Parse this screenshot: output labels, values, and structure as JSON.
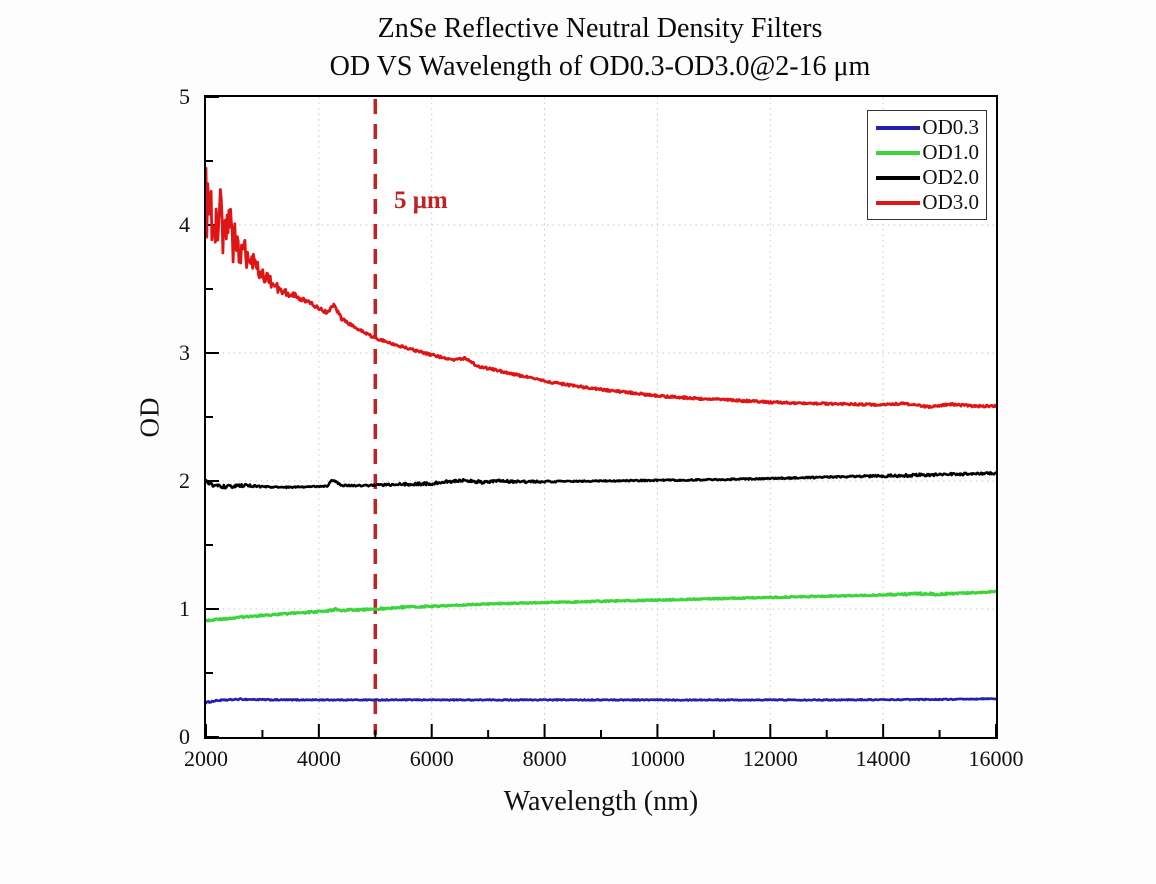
{
  "title_line1": "ZnSe Reflective Neutral Density Filters",
  "title_line2": "OD VS Wavelength of OD0.3-OD3.0@2-16 μm",
  "axes": {
    "x_label": "Wavelength (nm)",
    "y_label": "OD",
    "x_range": [
      2000,
      16000
    ],
    "y_range": [
      0,
      5
    ],
    "x_major_ticks": [
      2000,
      4000,
      6000,
      8000,
      10000,
      12000,
      14000,
      16000
    ],
    "x_minor_ticks": [
      3000,
      5000,
      7000,
      9000,
      11000,
      13000,
      15000
    ],
    "y_major_ticks": [
      0,
      1,
      2,
      3,
      4,
      5
    ],
    "y_minor_ticks": [
      0.5,
      1.5,
      2.5,
      3.5,
      4.5
    ],
    "grid_color": "#c7c7c7",
    "frame_color": "#000000"
  },
  "annotation": {
    "label": "5 μm",
    "x_nm": 5000,
    "color": "#bf2323"
  },
  "legend": {
    "position": "top-right",
    "entries": [
      "OD0.3",
      "OD1.0",
      "OD2.0",
      "OD3.0"
    ]
  },
  "chart_data": {
    "type": "line",
    "title": "ZnSe Reflective Neutral Density Filters — OD VS Wavelength of OD0.3-OD3.0@2-16 μm",
    "xlabel": "Wavelength (nm)",
    "ylabel": "OD",
    "xlim": [
      2000,
      16000
    ],
    "ylim": [
      0,
      5
    ],
    "grid": true,
    "legend_position": "top-right",
    "vline": {
      "x": 5000,
      "label": "5 μm",
      "style": "dashed",
      "color": "#bf2323"
    },
    "series": [
      {
        "name": "OD0.3",
        "color": "#2121ad",
        "stroke_width": 2.6,
        "points": [
          [
            2000,
            0.27
          ],
          [
            2200,
            0.285
          ],
          [
            2600,
            0.295
          ],
          [
            3200,
            0.29
          ],
          [
            4000,
            0.29
          ],
          [
            5000,
            0.29
          ],
          [
            7000,
            0.29
          ],
          [
            9000,
            0.29
          ],
          [
            11000,
            0.29
          ],
          [
            13000,
            0.29
          ],
          [
            14500,
            0.292
          ],
          [
            15500,
            0.295
          ],
          [
            16000,
            0.3
          ]
        ],
        "noise": [
          [
            2000,
            0.006
          ],
          [
            2600,
            0.005
          ],
          [
            4000,
            0.004
          ],
          [
            16000,
            0.004
          ]
        ]
      },
      {
        "name": "OD1.0",
        "color": "#3bd43b",
        "stroke_width": 3.0,
        "points": [
          [
            2000,
            0.91
          ],
          [
            2500,
            0.93
          ],
          [
            3000,
            0.95
          ],
          [
            3500,
            0.965
          ],
          [
            4000,
            0.98
          ],
          [
            4250,
            0.99
          ],
          [
            4300,
            1.0
          ],
          [
            4400,
            0.99
          ],
          [
            5000,
            1.0
          ],
          [
            5600,
            1.015
          ],
          [
            6200,
            1.025
          ],
          [
            7000,
            1.04
          ],
          [
            8000,
            1.05
          ],
          [
            9000,
            1.06
          ],
          [
            10000,
            1.07
          ],
          [
            11000,
            1.08
          ],
          [
            12000,
            1.09
          ],
          [
            13000,
            1.1
          ],
          [
            14000,
            1.11
          ],
          [
            14700,
            1.12
          ],
          [
            15000,
            1.115
          ],
          [
            15500,
            1.125
          ],
          [
            16000,
            1.135
          ]
        ],
        "noise": [
          [
            2000,
            0.006
          ],
          [
            4500,
            0.007
          ],
          [
            5400,
            0.008
          ],
          [
            6200,
            0.005
          ],
          [
            13800,
            0.005
          ],
          [
            14800,
            0.01
          ],
          [
            15400,
            0.006
          ],
          [
            16000,
            0.006
          ]
        ]
      },
      {
        "name": "OD2.0",
        "color": "#000000",
        "stroke_width": 2.6,
        "points": [
          [
            2000,
            2.0
          ],
          [
            2080,
            1.975
          ],
          [
            2200,
            1.96
          ],
          [
            2400,
            1.955
          ],
          [
            2700,
            1.965
          ],
          [
            3000,
            1.955
          ],
          [
            3400,
            1.95
          ],
          [
            3800,
            1.955
          ],
          [
            4150,
            1.96
          ],
          [
            4230,
            2.01
          ],
          [
            4300,
            1.995
          ],
          [
            4400,
            1.965
          ],
          [
            4800,
            1.965
          ],
          [
            5200,
            1.97
          ],
          [
            5600,
            1.975
          ],
          [
            6000,
            1.98
          ],
          [
            6300,
            1.995
          ],
          [
            6600,
            2.005
          ],
          [
            6900,
            1.99
          ],
          [
            7200,
            2.0
          ],
          [
            7500,
            1.995
          ],
          [
            8000,
            1.995
          ],
          [
            9000,
            2.0
          ],
          [
            10000,
            2.005
          ],
          [
            11000,
            2.01
          ],
          [
            12000,
            2.02
          ],
          [
            13000,
            2.03
          ],
          [
            14000,
            2.04
          ],
          [
            14500,
            2.045
          ],
          [
            15000,
            2.05
          ],
          [
            15500,
            2.055
          ],
          [
            16000,
            2.06
          ]
        ],
        "noise": [
          [
            2000,
            0.014
          ],
          [
            2600,
            0.012
          ],
          [
            3000,
            0.006
          ],
          [
            4000,
            0.005
          ],
          [
            6200,
            0.012
          ],
          [
            7600,
            0.01
          ],
          [
            8500,
            0.005
          ],
          [
            13500,
            0.006
          ],
          [
            14300,
            0.012
          ],
          [
            15000,
            0.01
          ],
          [
            16000,
            0.008
          ]
        ]
      },
      {
        "name": "OD3.0",
        "color": "#df1414",
        "stroke_width": 2.8,
        "points": [
          [
            2000,
            4.15
          ],
          [
            2150,
            4.1
          ],
          [
            2300,
            4.0
          ],
          [
            2500,
            3.88
          ],
          [
            2700,
            3.76
          ],
          [
            2900,
            3.66
          ],
          [
            3100,
            3.57
          ],
          [
            3300,
            3.5
          ],
          [
            3600,
            3.44
          ],
          [
            3800,
            3.4
          ],
          [
            4000,
            3.35
          ],
          [
            4150,
            3.315
          ],
          [
            4270,
            3.375
          ],
          [
            4400,
            3.27
          ],
          [
            4600,
            3.21
          ],
          [
            4800,
            3.16
          ],
          [
            5000,
            3.115
          ],
          [
            5400,
            3.06
          ],
          [
            6000,
            2.985
          ],
          [
            6400,
            2.945
          ],
          [
            6600,
            2.96
          ],
          [
            6800,
            2.9
          ],
          [
            7200,
            2.86
          ],
          [
            7600,
            2.82
          ],
          [
            8000,
            2.78
          ],
          [
            8500,
            2.745
          ],
          [
            9000,
            2.715
          ],
          [
            9500,
            2.69
          ],
          [
            10000,
            2.665
          ],
          [
            10700,
            2.645
          ],
          [
            11400,
            2.63
          ],
          [
            12000,
            2.615
          ],
          [
            12700,
            2.605
          ],
          [
            13400,
            2.6
          ],
          [
            14000,
            2.595
          ],
          [
            14400,
            2.605
          ],
          [
            14800,
            2.58
          ],
          [
            15200,
            2.6
          ],
          [
            15600,
            2.585
          ],
          [
            16000,
            2.585
          ]
        ],
        "noise": [
          [
            2000,
            0.33
          ],
          [
            2200,
            0.28
          ],
          [
            2400,
            0.22
          ],
          [
            2600,
            0.14
          ],
          [
            2800,
            0.09
          ],
          [
            3000,
            0.055
          ],
          [
            3300,
            0.035
          ],
          [
            3600,
            0.022
          ],
          [
            4000,
            0.014
          ],
          [
            5000,
            0.01
          ],
          [
            7000,
            0.009
          ],
          [
            16000,
            0.008
          ]
        ]
      }
    ]
  }
}
